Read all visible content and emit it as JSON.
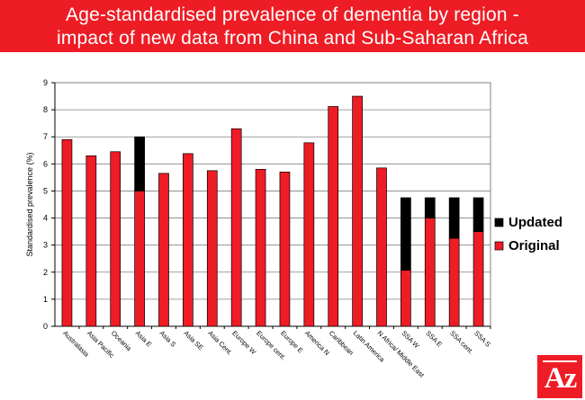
{
  "title": {
    "line1": "Age-standardised prevalence of dementia by region -",
    "line2": "impact of new data from China and Sub-Saharan Africa"
  },
  "logo": {
    "text": "Az"
  },
  "colors": {
    "banner": "#ee1c25",
    "original": "#ee1c25",
    "updated": "#000000"
  },
  "chart_data": {
    "type": "bar",
    "stacked": true,
    "categories": [
      "Australasia",
      "Asia Pacific",
      "Oceania",
      "Asia E",
      "Asia S",
      "Asia SE",
      "Asia Cent.",
      "Europe W",
      "Europe cent.",
      "Europe E",
      "America N",
      "Caribbean",
      "Latin America",
      "N Africa/ Middle East",
      "SSA W",
      "SSA E",
      "SSA cent.",
      "SSA S"
    ],
    "series": [
      {
        "name": "Original",
        "values": [
          6.9,
          6.3,
          6.45,
          5.0,
          5.65,
          6.38,
          5.75,
          7.3,
          5.8,
          5.7,
          6.78,
          8.12,
          8.5,
          5.85,
          2.07,
          4.0,
          3.25,
          3.5
        ]
      },
      {
        "name": "Updated",
        "values": [
          0,
          0,
          0,
          2.0,
          0,
          0,
          0,
          0,
          0,
          0,
          0,
          0,
          0,
          0,
          2.68,
          0.75,
          1.5,
          1.25
        ]
      }
    ],
    "ylabel": "Standardised prevalence (%)",
    "xlabel": "",
    "ylim": [
      0,
      9
    ],
    "yticks": [
      0,
      1,
      2,
      3,
      4,
      5,
      6,
      7,
      8,
      9
    ],
    "grid": true,
    "legend": {
      "position": "right",
      "entries": [
        "Updated",
        "Original"
      ]
    }
  }
}
